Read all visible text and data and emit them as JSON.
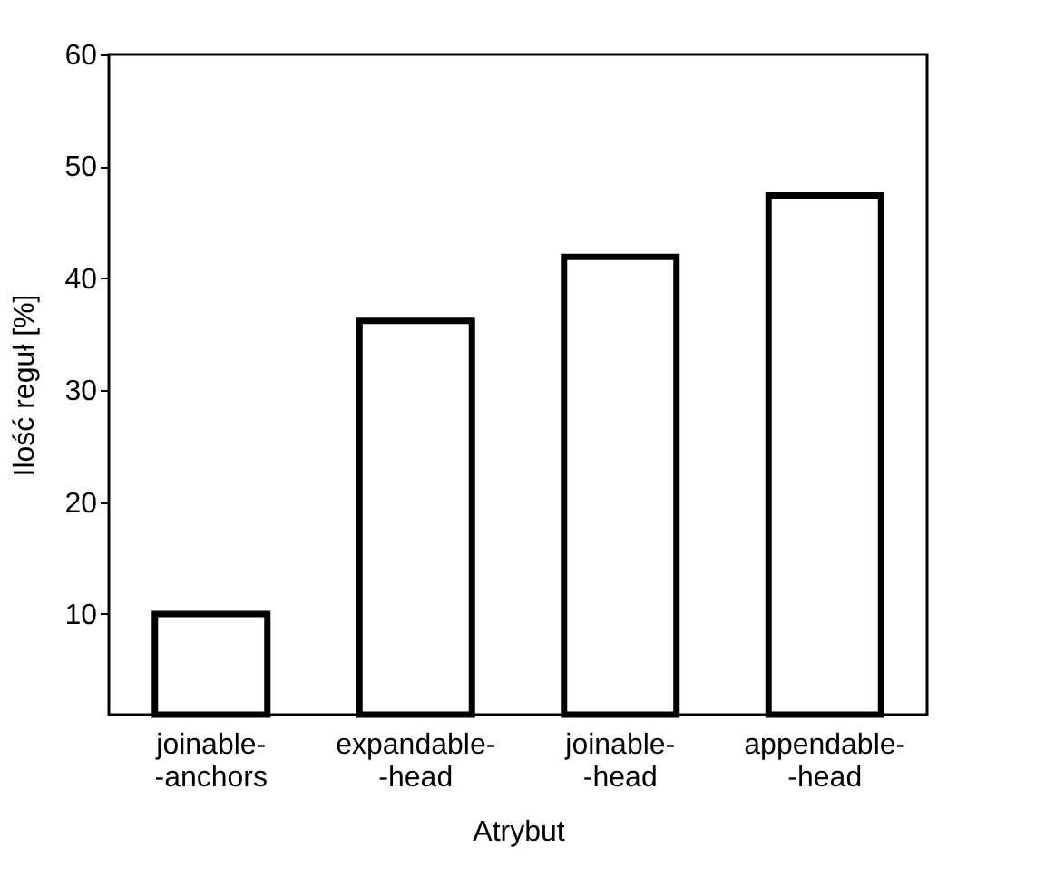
{
  "chart_data": {
    "type": "bar",
    "xlabel": "Atrybut",
    "ylabel": "Ilość reguł [%]",
    "categories": [
      "joinable-\n-anchors",
      "expandable-\n-head",
      "joinable-\n-head",
      "appendable-\n-head"
    ],
    "values": [
      10,
      36.2,
      41.9,
      47.4
    ],
    "color": "#000000",
    "ylim": [
      1,
      60
    ],
    "yticks": [
      10,
      20,
      30,
      40,
      50,
      60
    ],
    "grid": false
  }
}
